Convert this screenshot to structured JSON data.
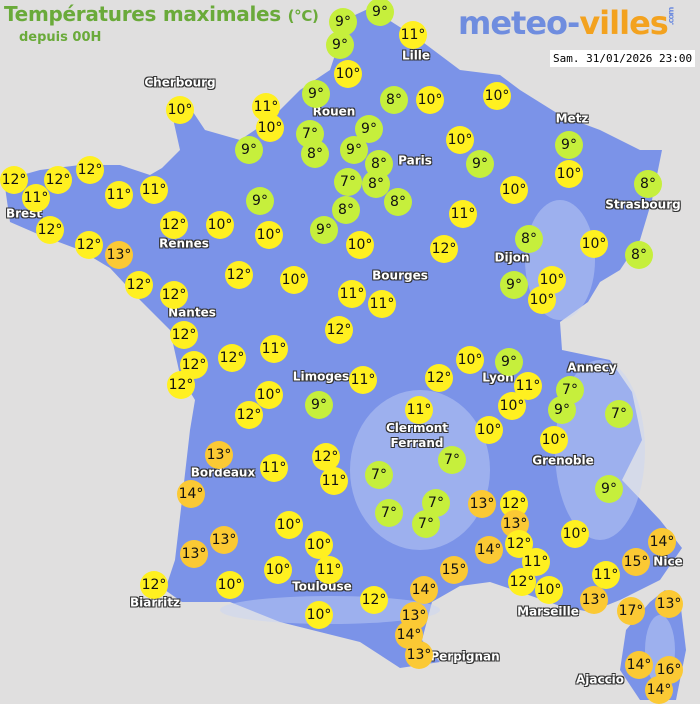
{
  "header": {
    "title": "Températures maximales",
    "unit": "(°C)",
    "subtitle": "depuis 00H",
    "logo_part1": "meteo-",
    "logo_part2": "villes",
    "logo_suffix": ".com",
    "datetime": "Sam. 31/01/2026 23:00"
  },
  "colors": {
    "land": "#7b93e8",
    "sea": "#e0dfdf",
    "cold": "#c6ef3c",
    "mild": "#fff020",
    "warm": "#fbc934"
  },
  "cities": [
    "Cherbourg",
    "Rouen",
    "Lille",
    "Paris",
    "Metz",
    "Strasbourg",
    "Brest",
    "Rennes",
    "Dijon",
    "Bourges",
    "Nantes",
    "Annecy",
    "Limoges",
    "Lyon",
    "Clermont\nFerrand",
    "Grenoble",
    "Bordeaux",
    "Toulouse",
    "Biarritz",
    "Marseille",
    "Nice",
    "Perpignan",
    "Ajaccio"
  ],
  "temperatures": [
    9,
    9,
    9,
    11,
    10,
    10,
    9,
    11,
    10,
    7,
    8,
    9,
    9,
    9,
    8,
    8,
    10,
    10,
    10,
    9,
    7,
    8,
    8,
    8,
    10,
    9,
    10,
    8,
    12,
    11,
    12,
    12,
    11,
    11,
    12,
    10,
    9,
    10,
    9,
    10,
    11,
    12,
    8,
    10,
    8,
    12,
    12,
    13,
    12,
    12,
    12,
    10,
    11,
    11,
    9,
    10,
    10,
    12,
    12,
    12,
    12,
    12,
    11,
    10,
    12,
    9,
    11,
    10,
    12,
    9,
    11,
    10,
    7,
    9,
    7,
    11,
    10,
    10,
    13,
    11,
    12,
    11,
    7,
    7,
    9,
    14,
    13,
    13,
    10,
    10,
    10,
    10,
    12,
    11,
    10,
    12,
    7,
    7,
    7,
    13,
    12,
    13,
    14,
    12,
    15,
    11,
    12,
    10,
    10,
    11,
    13,
    14,
    13,
    14,
    13,
    17,
    13,
    14,
    15,
    14,
    16,
    14
  ]
}
